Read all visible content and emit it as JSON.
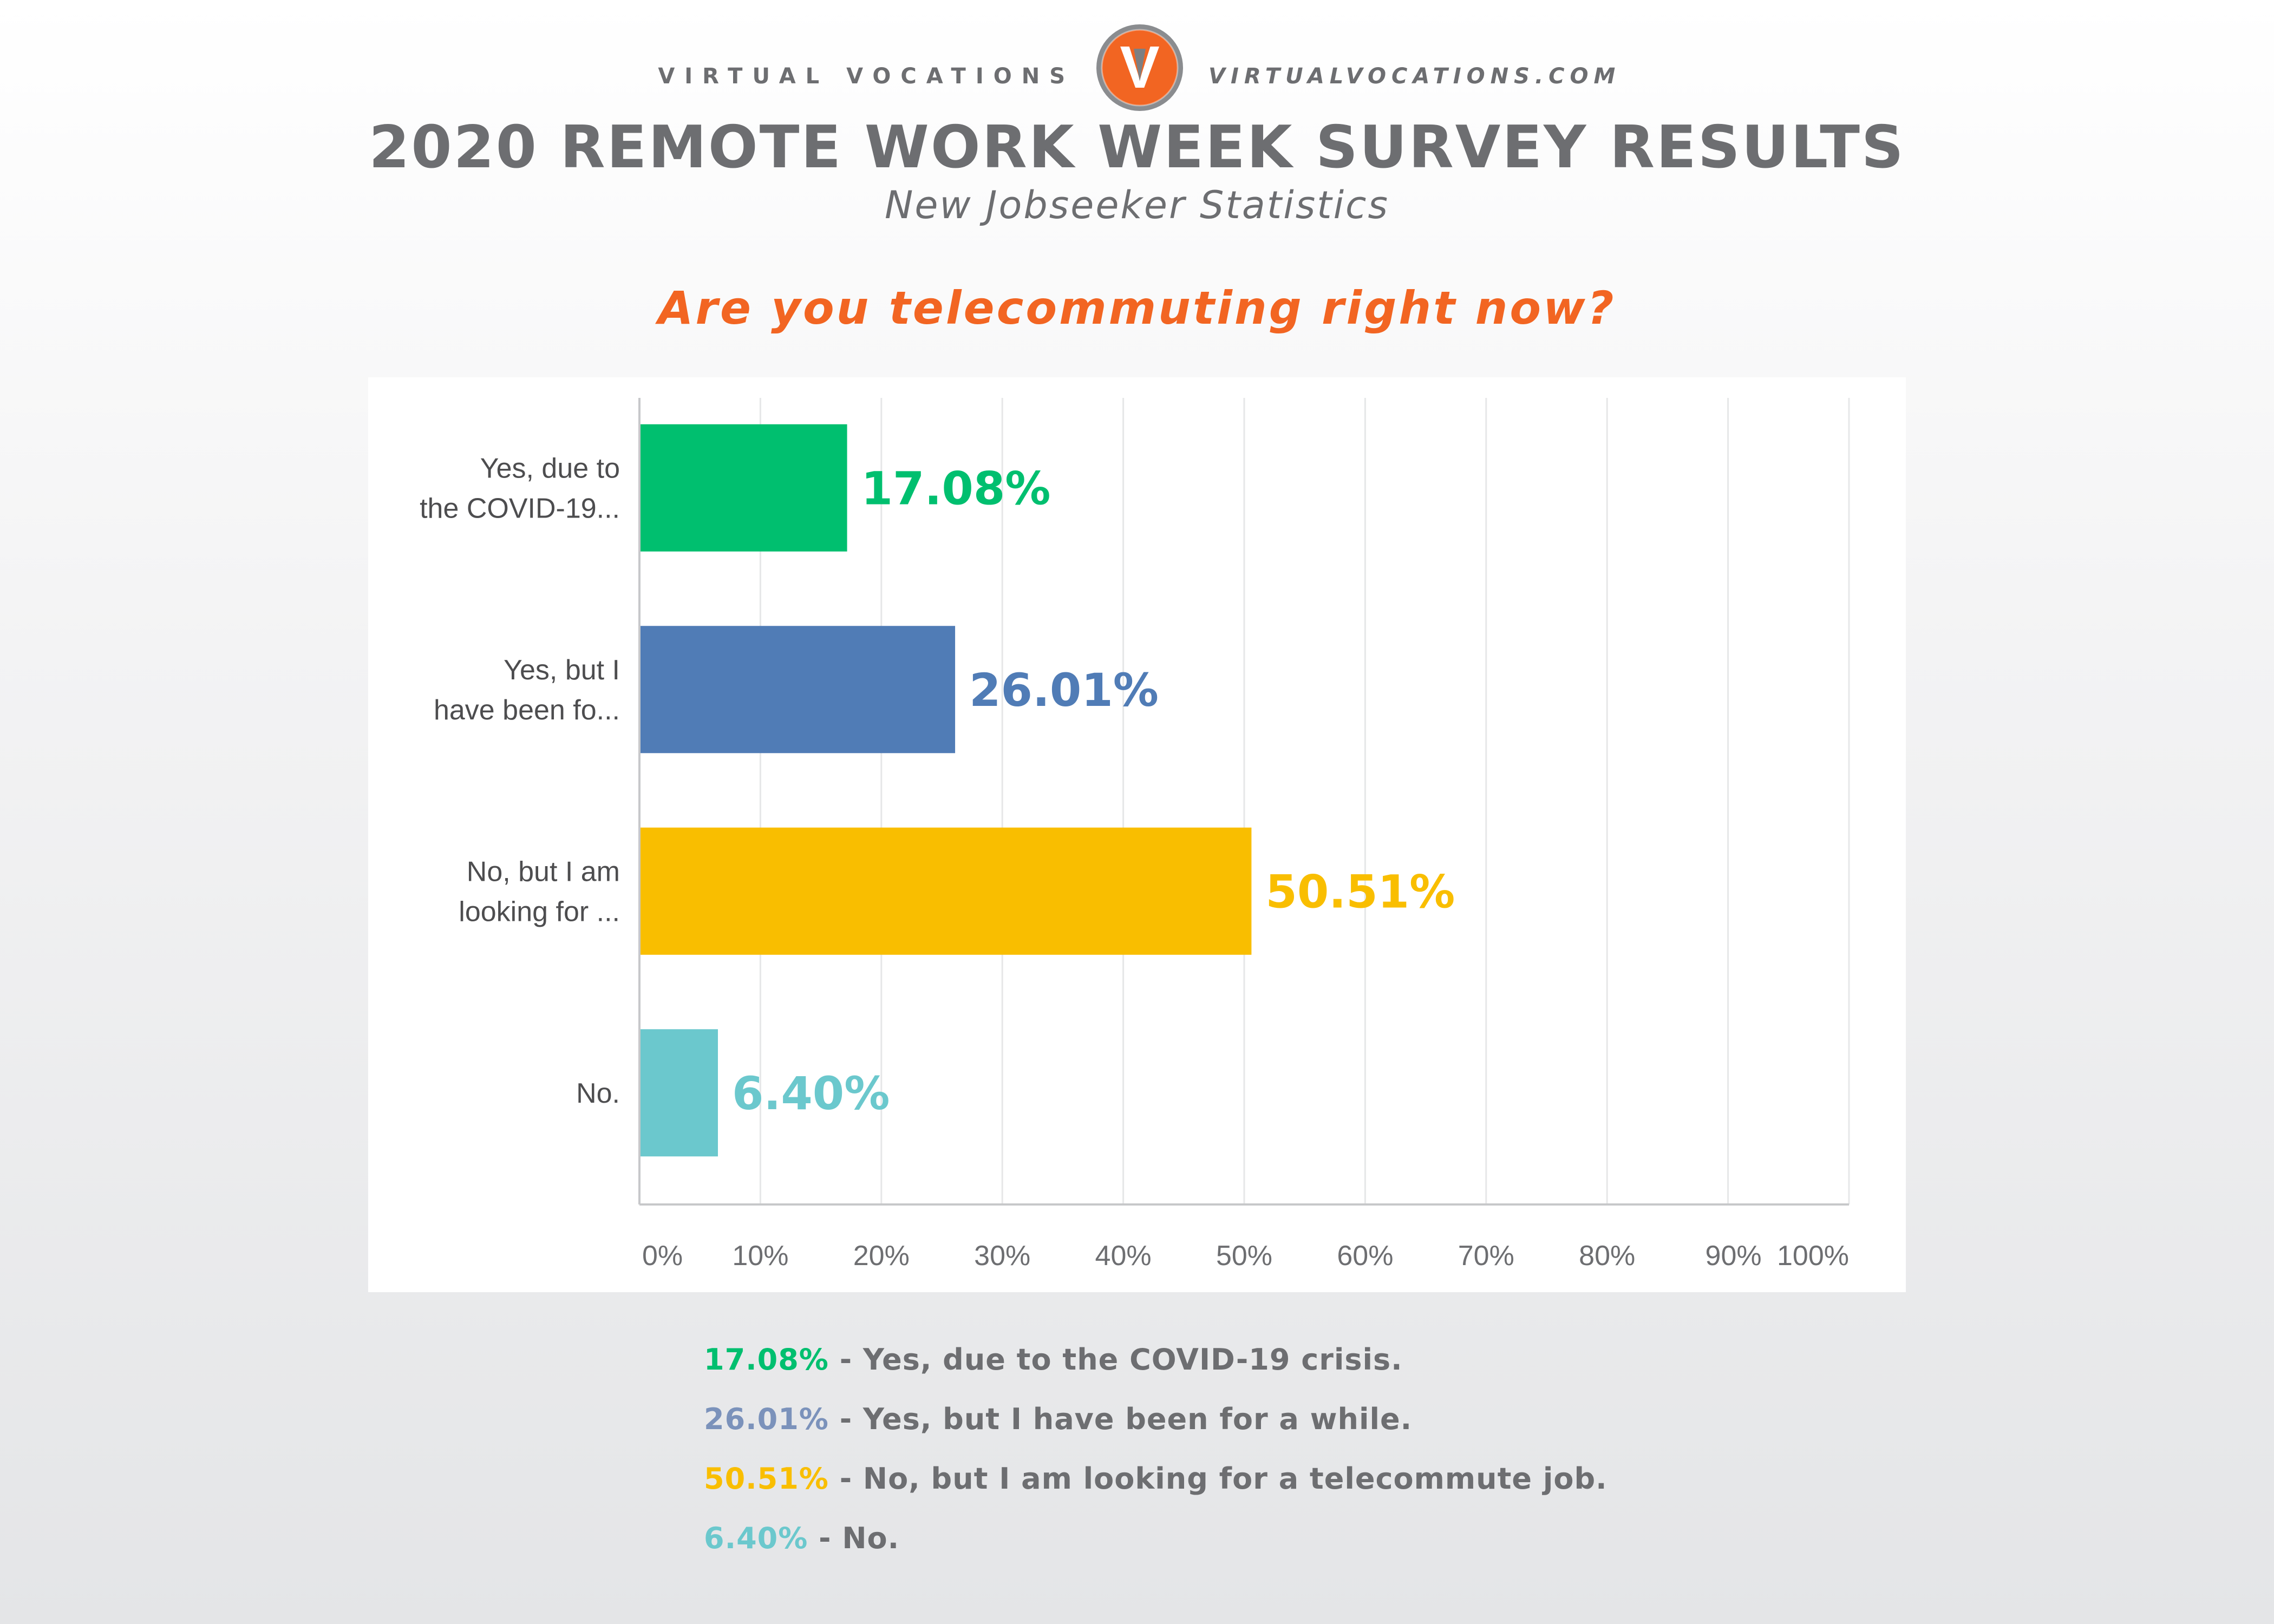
{
  "header": {
    "brand_left": "VIRTUAL VOCATIONS",
    "brand_right": "VIRTUALVOCATIONS.COM",
    "logo_letter": "V",
    "title": "2020 REMOTE WORK WEEK SURVEY RESULTS",
    "subtitle": "New Jobseeker Statistics",
    "question": "Are you telecommuting right now?"
  },
  "colors": {
    "orange": "#f26522",
    "gray": "#6d6e71",
    "green": "#00bf6f",
    "blue": "#507cb6",
    "yellow": "#f9be00",
    "teal": "#6bc8cd"
  },
  "chart_data": {
    "type": "bar",
    "orientation": "horizontal",
    "categories": [
      [
        "Yes, due to",
        "the COVID-19..."
      ],
      [
        "Yes, but I",
        "have been fo..."
      ],
      [
        "No, but I am",
        "looking for ..."
      ],
      [
        "No."
      ]
    ],
    "values": [
      17.08,
      26.01,
      50.51,
      6.4
    ],
    "value_labels": [
      "17.08%",
      "26.01%",
      "50.51%",
      "6.40%"
    ],
    "bar_colors": [
      "#00bf6f",
      "#507cb6",
      "#f9be00",
      "#6bc8cd"
    ],
    "xlim": [
      0,
      100
    ],
    "xticks": [
      "0%",
      "10%",
      "20%",
      "30%",
      "40%",
      "50%",
      "60%",
      "70%",
      "80%",
      "90%",
      "100%"
    ],
    "grid": true
  },
  "legend": [
    {
      "pct": "17.08%",
      "text": " - Yes, due to the COVID-19 crisis.",
      "color": "#00bf6f"
    },
    {
      "pct": "26.01%",
      "text": " - Yes, but I have been for a while.",
      "color": "#7b92bb"
    },
    {
      "pct": "50.51%",
      "text": " - No, but I am looking for a telecommute job.",
      "color": "#f9be00"
    },
    {
      "pct": "6.40%",
      "text": " - No.",
      "color": "#6bc8cd"
    }
  ]
}
